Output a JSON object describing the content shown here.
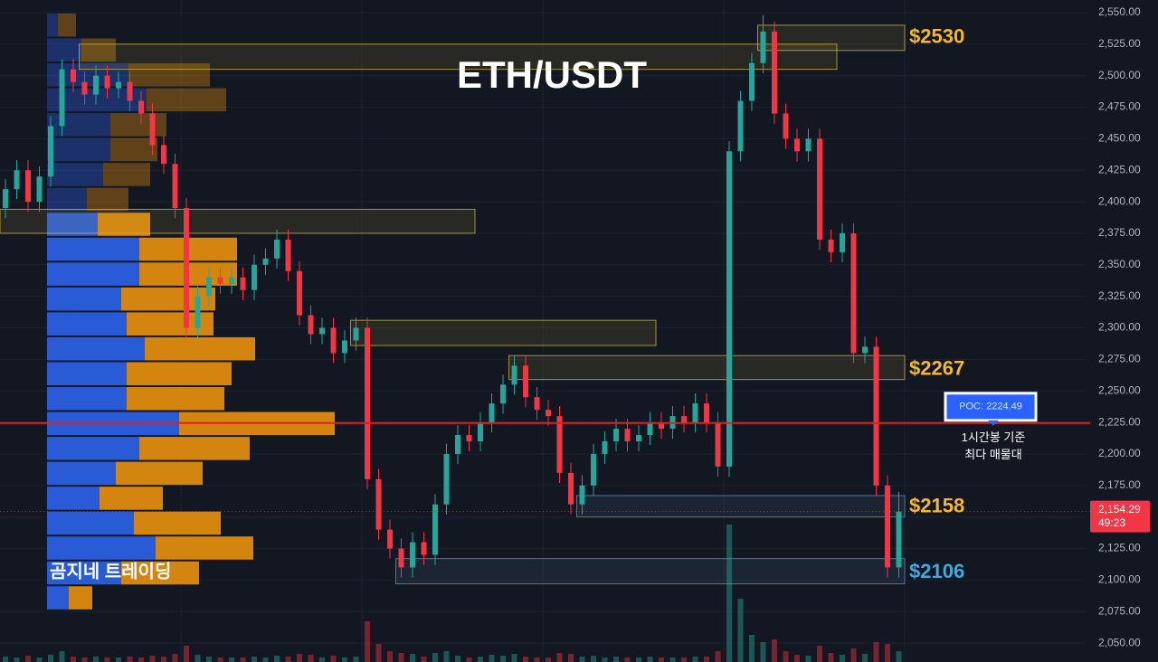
{
  "chart_data": {
    "type": "candlestick",
    "title": "ETH/USDT",
    "watermark": "곰지네 트레이딩",
    "open": [
      2395,
      2410,
      2425,
      2400,
      2420,
      2460,
      2505,
      2495,
      2485,
      2500,
      2490,
      2495,
      2480,
      2470,
      2445,
      2430,
      2395,
      2300,
      2325,
      2340,
      2335,
      2340,
      2330,
      2350,
      2355,
      2370,
      2345,
      2310,
      2295,
      2300,
      2280,
      2290,
      2300,
      2180,
      2140,
      2125,
      2110,
      2130,
      2120,
      2160,
      2200,
      2215,
      2210,
      2225,
      2240,
      2255,
      2270,
      2245,
      2235,
      2230,
      2185,
      2160,
      2175,
      2200,
      2210,
      2220,
      2210,
      2215,
      2225,
      2220,
      2230,
      2225,
      2240,
      2225,
      2190,
      2440,
      2480,
      2510,
      2535,
      2470,
      2450,
      2440,
      2450,
      2370,
      2360,
      2375,
      2280,
      2285,
      2175,
      2110
    ],
    "high": [
      2418,
      2433,
      2433,
      2428,
      2468,
      2513,
      2513,
      2503,
      2508,
      2508,
      2503,
      2503,
      2488,
      2478,
      2453,
      2438,
      2403,
      2333,
      2348,
      2348,
      2348,
      2348,
      2358,
      2363,
      2378,
      2378,
      2353,
      2318,
      2308,
      2308,
      2298,
      2308,
      2308,
      2188,
      2148,
      2133,
      2138,
      2138,
      2168,
      2208,
      2223,
      2223,
      2233,
      2248,
      2263,
      2278,
      2278,
      2253,
      2243,
      2238,
      2193,
      2183,
      2208,
      2218,
      2228,
      2228,
      2223,
      2233,
      2233,
      2238,
      2238,
      2248,
      2248,
      2233,
      2448,
      2488,
      2518,
      2548,
      2543,
      2478,
      2458,
      2458,
      2458,
      2378,
      2383,
      2383,
      2293,
      2293,
      2183,
      2170
    ],
    "low": [
      2387,
      2402,
      2392,
      2392,
      2412,
      2452,
      2487,
      2477,
      2477,
      2482,
      2482,
      2472,
      2462,
      2437,
      2422,
      2387,
      2292,
      2292,
      2317,
      2327,
      2327,
      2322,
      2322,
      2342,
      2347,
      2337,
      2302,
      2287,
      2287,
      2272,
      2272,
      2282,
      2172,
      2132,
      2117,
      2102,
      2102,
      2112,
      2112,
      2152,
      2192,
      2202,
      2202,
      2217,
      2232,
      2247,
      2237,
      2227,
      2222,
      2177,
      2152,
      2152,
      2167,
      2192,
      2202,
      2202,
      2202,
      2207,
      2212,
      2212,
      2217,
      2217,
      2217,
      2182,
      2182,
      2432,
      2472,
      2502,
      2462,
      2442,
      2432,
      2432,
      2362,
      2352,
      2352,
      2272,
      2272,
      2167,
      2102,
      2102
    ],
    "close": [
      2410,
      2425,
      2400,
      2420,
      2460,
      2505,
      2495,
      2485,
      2500,
      2490,
      2495,
      2480,
      2470,
      2445,
      2430,
      2395,
      2300,
      2325,
      2340,
      2335,
      2340,
      2330,
      2350,
      2355,
      2370,
      2345,
      2310,
      2295,
      2300,
      2280,
      2290,
      2300,
      2180,
      2140,
      2125,
      2110,
      2130,
      2120,
      2160,
      2200,
      2215,
      2210,
      2225,
      2240,
      2255,
      2270,
      2245,
      2235,
      2230,
      2185,
      2160,
      2175,
      2200,
      2210,
      2220,
      2210,
      2215,
      2225,
      2220,
      2230,
      2225,
      2240,
      2225,
      2190,
      2440,
      2480,
      2510,
      2535,
      2470,
      2450,
      2440,
      2450,
      2370,
      2360,
      2375,
      2280,
      2285,
      2175,
      2110,
      2154.29
    ],
    "volume": [
      6,
      5,
      7,
      5,
      8,
      12,
      6,
      5,
      6,
      5,
      5,
      6,
      5,
      7,
      6,
      9,
      18,
      8,
      6,
      5,
      5,
      5,
      6,
      5,
      7,
      6,
      9,
      8,
      5,
      7,
      5,
      6,
      45,
      20,
      12,
      10,
      9,
      6,
      10,
      12,
      7,
      5,
      6,
      8,
      7,
      9,
      6,
      5,
      5,
      10,
      9,
      6,
      7,
      5,
      6,
      5,
      5,
      6,
      5,
      5,
      5,
      6,
      6,
      12,
      152,
      70,
      30,
      22,
      25,
      12,
      8,
      7,
      18,
      10,
      8,
      15,
      9,
      22,
      20,
      12
    ],
    "up_color": "#26a69a",
    "down_color": "#f23645",
    "ylim": [
      2035,
      2560
    ],
    "yticks": [
      {
        "value": 2050,
        "label": "2,050.00"
      },
      {
        "value": 2075,
        "label": "2,075.00"
      },
      {
        "value": 2100,
        "label": "2,100.00"
      },
      {
        "value": 2125,
        "label": "2,125.00"
      },
      {
        "value": 2150,
        "label": "2,150.00"
      },
      {
        "value": 2175,
        "label": "2,175.00"
      },
      {
        "value": 2200,
        "label": "2,200.00"
      },
      {
        "value": 2225,
        "label": "2,225.00"
      },
      {
        "value": 2250,
        "label": "2,250.00"
      },
      {
        "value": 2275,
        "label": "2,275.00"
      },
      {
        "value": 2300,
        "label": "2,300.00"
      },
      {
        "value": 2325,
        "label": "2,325.00"
      },
      {
        "value": 2350,
        "label": "2,350.00"
      },
      {
        "value": 2375,
        "label": "2,375.00"
      },
      {
        "value": 2400,
        "label": "2,400.00"
      },
      {
        "value": 2425,
        "label": "2,425.00"
      },
      {
        "value": 2450,
        "label": "2,450.00"
      },
      {
        "value": 2475,
        "label": "2,475.00"
      },
      {
        "value": 2500,
        "label": "2,500.00"
      },
      {
        "value": 2525,
        "label": "2,525.00"
      },
      {
        "value": 2550,
        "label": "2,550.00"
      }
    ],
    "grid": true,
    "profile": {
      "top": 2550,
      "step": 19.75,
      "dim_above": 2380,
      "buy_color": "#2a5bd7",
      "sell_color": "#d4850f",
      "buy": [
        12,
        38,
        90,
        110,
        70,
        70,
        62,
        44,
        56,
        102,
        102,
        82,
        88,
        108,
        88,
        88,
        146,
        102,
        76,
        58,
        96,
        120,
        82,
        24
      ],
      "sell": [
        20,
        38,
        90,
        88,
        62,
        52,
        52,
        46,
        58,
        108,
        108,
        104,
        96,
        122,
        116,
        108,
        172,
        122,
        96,
        70,
        96,
        108,
        86,
        26
      ]
    },
    "zones": [
      {
        "low": 2505,
        "high": 2525,
        "from": 7,
        "to": 74,
        "color": "#c9b037"
      },
      {
        "low": 2520,
        "high": 2540,
        "from": 67,
        "to": 80,
        "color": "#c9b037"
      },
      {
        "low": 2375,
        "high": 2394,
        "from": 0,
        "to": 42,
        "color": "#c9b037"
      },
      {
        "low": 2286,
        "high": 2306,
        "from": 31,
        "to": 58,
        "color": "#c9b037"
      },
      {
        "low": 2259,
        "high": 2278,
        "from": 45,
        "to": 80,
        "color": "#c9b037"
      },
      {
        "low": 2150,
        "high": 2167,
        "from": 51,
        "to": 80,
        "color": "#5b8fb9"
      },
      {
        "low": 2097,
        "high": 2117,
        "from": 35,
        "to": 80,
        "color": "#5b8fb9"
      }
    ],
    "levels": [
      {
        "label": "$2530",
        "value": 2530,
        "color": "#f5b82e"
      },
      {
        "label": "$2267",
        "value": 2267,
        "color": "#f5b82e"
      },
      {
        "label": "$2158",
        "value": 2158,
        "color": "#f5b82e"
      },
      {
        "label": "$2106",
        "value": 2106,
        "color": "#3fa9e0"
      }
    ],
    "poc": {
      "value": 2224.49,
      "label": "POC: 2224.49",
      "color": "#e0201b"
    },
    "note": [
      "1시간봉 기준",
      "최다 매물대"
    ],
    "last": {
      "value": 2154.29,
      "label": "2,154.29",
      "timer": "49:23"
    }
  }
}
